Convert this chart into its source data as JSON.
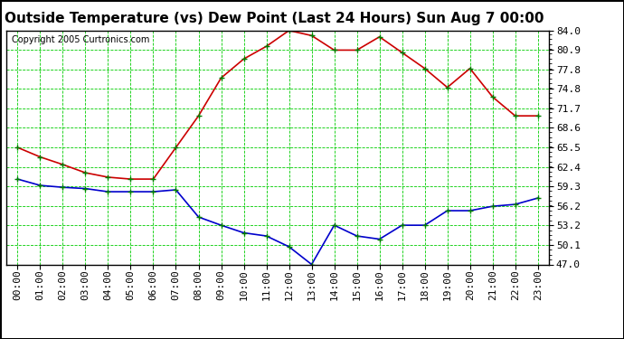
{
  "title": "Outside Temperature (vs) Dew Point (Last 24 Hours) Sun Aug 7 00:00",
  "copyright": "Copyright 2005 Curtronics.com",
  "background_color": "#ffffff",
  "plot_background": "#ffffff",
  "grid_color": "#00cc00",
  "hours": [
    0,
    1,
    2,
    3,
    4,
    5,
    6,
    7,
    8,
    9,
    10,
    11,
    12,
    13,
    14,
    15,
    16,
    17,
    18,
    19,
    20,
    21,
    22,
    23
  ],
  "x_labels": [
    "00:00",
    "01:00",
    "02:00",
    "03:00",
    "04:00",
    "05:00",
    "06:00",
    "07:00",
    "08:00",
    "09:00",
    "10:00",
    "11:00",
    "12:00",
    "13:00",
    "14:00",
    "15:00",
    "16:00",
    "17:00",
    "18:00",
    "19:00",
    "20:00",
    "21:00",
    "22:00",
    "23:00"
  ],
  "temp_red": [
    65.5,
    64.0,
    62.8,
    61.5,
    60.8,
    60.5,
    60.5,
    65.5,
    70.5,
    76.5,
    79.5,
    81.5,
    84.0,
    83.2,
    80.9,
    80.9,
    83.0,
    80.5,
    78.0,
    75.0,
    78.0,
    73.5,
    70.5,
    70.5
  ],
  "dew_blue": [
    60.5,
    59.5,
    59.2,
    59.0,
    58.5,
    58.5,
    58.5,
    58.8,
    54.5,
    53.2,
    52.0,
    51.5,
    49.8,
    47.0,
    53.2,
    51.5,
    51.0,
    53.2,
    53.2,
    55.5,
    55.5,
    56.2,
    56.5,
    57.5
  ],
  "temp_color": "#cc0000",
  "dew_color": "#0000cc",
  "marker_color": "#008000",
  "markersize": 4,
  "linewidth": 1.2,
  "ylim": [
    47.0,
    84.0
  ],
  "yticks": [
    47.0,
    50.1,
    53.2,
    56.2,
    59.3,
    62.4,
    65.5,
    68.6,
    71.7,
    74.8,
    77.8,
    80.9,
    84.0
  ],
  "title_fontsize": 11,
  "tick_fontsize": 8,
  "copyright_fontsize": 7
}
